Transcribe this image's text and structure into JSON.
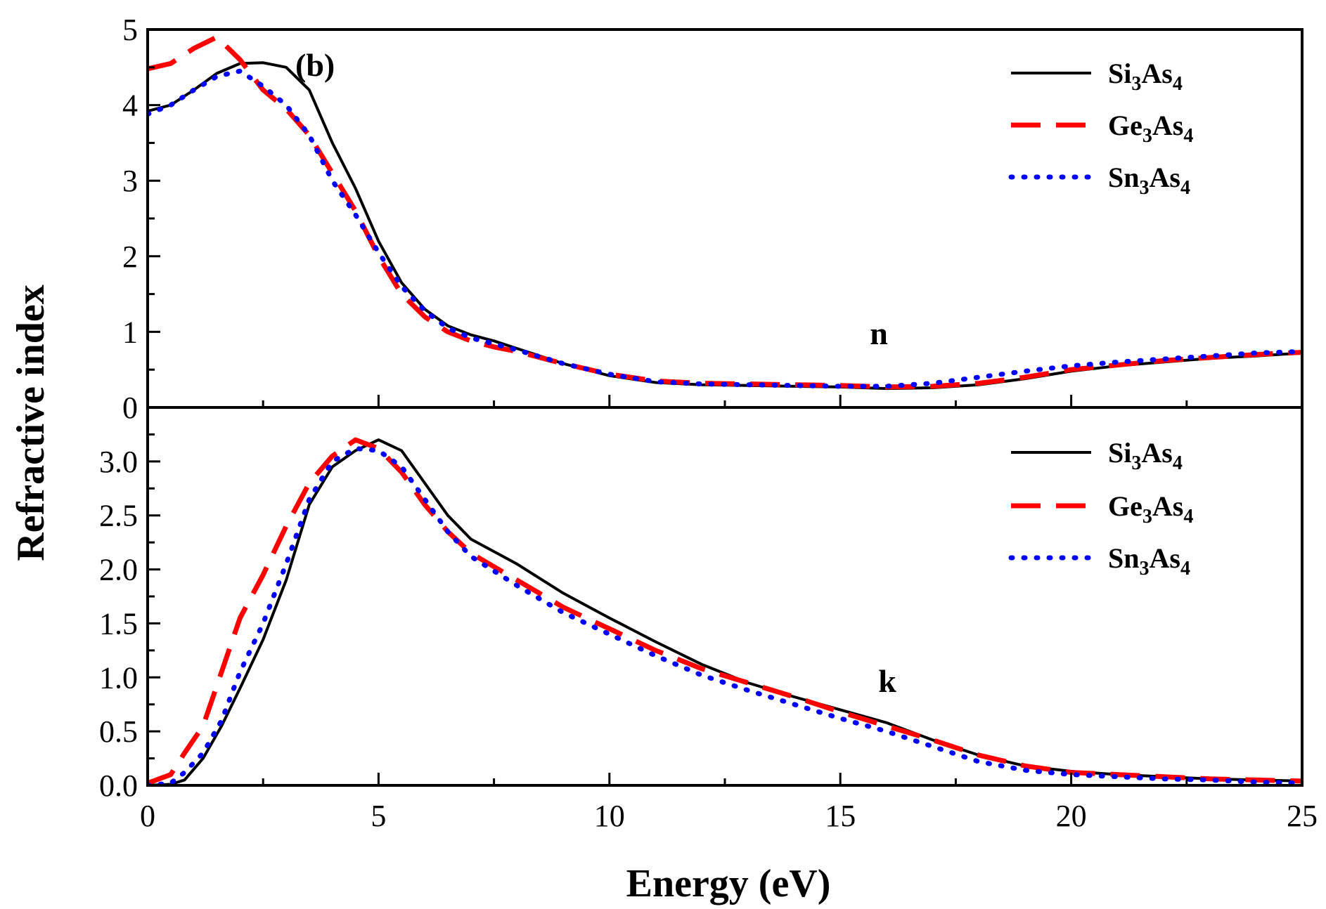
{
  "chart_data": {
    "type": "line",
    "figure_label": "(b)",
    "xlabel": "Energy (eV)",
    "ylabel": "Refractive index",
    "xlim": [
      0,
      25
    ],
    "x_ticks": [
      "0",
      "5",
      "10",
      "15",
      "20",
      "25"
    ],
    "series_styles": [
      {
        "name": "Si3As4",
        "color": "#000000",
        "style": "solid"
      },
      {
        "name": "Ge3As4",
        "color": "#ff0000",
        "style": "dashed"
      },
      {
        "name": "Sn3As4",
        "color": "#0000ff",
        "style": "dotted"
      }
    ],
    "panels": [
      {
        "id": "n",
        "annotation": "n",
        "ylim": [
          0,
          5
        ],
        "y_ticks": [
          "0",
          "1",
          "2",
          "3",
          "4",
          "5"
        ],
        "y_tick_values": [
          0,
          1,
          2,
          3,
          4,
          5
        ],
        "legend": [
          {
            "base1": "Si",
            "sub1": "3",
            "base2": "As",
            "sub2": "4"
          },
          {
            "base1": "Ge",
            "sub1": "3",
            "base2": "As",
            "sub2": "4"
          },
          {
            "base1": "Sn",
            "sub1": "3",
            "base2": "As",
            "sub2": "4"
          }
        ],
        "series": [
          {
            "name": "Si3As4",
            "x": [
              0,
              0.5,
              1,
              1.5,
              2,
              2.5,
              3,
              3.5,
              4,
              4.5,
              5,
              5.5,
              6,
              6.5,
              7,
              7.5,
              8,
              9,
              10,
              11,
              12,
              13,
              14,
              15,
              16,
              17,
              18,
              19,
              20,
              21,
              22,
              23,
              24,
              25
            ],
            "y": [
              3.92,
              4.0,
              4.2,
              4.42,
              4.55,
              4.56,
              4.5,
              4.2,
              3.5,
              2.9,
              2.2,
              1.65,
              1.3,
              1.08,
              0.96,
              0.88,
              0.78,
              0.58,
              0.42,
              0.33,
              0.3,
              0.29,
              0.28,
              0.27,
              0.25,
              0.26,
              0.3,
              0.38,
              0.48,
              0.55,
              0.6,
              0.65,
              0.68,
              0.72
            ]
          },
          {
            "name": "Ge3As4",
            "x": [
              0,
              0.5,
              1,
              1.5,
              2,
              2.5,
              3,
              3.5,
              4,
              4.5,
              5,
              5.5,
              6,
              6.5,
              7,
              7.5,
              8,
              9,
              10,
              11,
              12,
              13,
              14,
              15,
              16,
              17,
              18,
              19,
              20,
              21,
              22,
              23,
              24,
              25
            ],
            "y": [
              4.48,
              4.55,
              4.75,
              4.9,
              4.6,
              4.2,
              3.95,
              3.6,
              3.1,
              2.6,
              2.0,
              1.5,
              1.2,
              1.0,
              0.88,
              0.8,
              0.74,
              0.58,
              0.44,
              0.35,
              0.32,
              0.31,
              0.3,
              0.29,
              0.27,
              0.28,
              0.32,
              0.4,
              0.5,
              0.56,
              0.62,
              0.66,
              0.7,
              0.73
            ]
          },
          {
            "name": "Sn3As4",
            "x": [
              0,
              0.5,
              1,
              1.5,
              2,
              2.5,
              3,
              3.5,
              4,
              4.5,
              5,
              5.5,
              6,
              6.5,
              7,
              7.5,
              8,
              9,
              10,
              11,
              12,
              13,
              14,
              15,
              16,
              17,
              18,
              19,
              20,
              21,
              22,
              23,
              24,
              25
            ],
            "y": [
              3.88,
              4.0,
              4.2,
              4.38,
              4.45,
              4.25,
              4.0,
              3.6,
              3.0,
              2.55,
              2.05,
              1.6,
              1.28,
              1.05,
              0.92,
              0.84,
              0.76,
              0.58,
              0.44,
              0.34,
              0.31,
              0.3,
              0.29,
              0.28,
              0.28,
              0.32,
              0.4,
              0.48,
              0.55,
              0.6,
              0.64,
              0.68,
              0.72,
              0.74
            ]
          }
        ]
      },
      {
        "id": "k",
        "annotation": "k",
        "ylim": [
          0,
          3.5
        ],
        "y_ticks": [
          "0.0",
          "0.5",
          "1.0",
          "1.5",
          "2.0",
          "2.5",
          "3.0"
        ],
        "y_tick_values": [
          0,
          0.5,
          1.0,
          1.5,
          2.0,
          2.5,
          3.0
        ],
        "legend": [
          {
            "base1": "Si",
            "sub1": "3",
            "base2": "As",
            "sub2": "4"
          },
          {
            "base1": "Ge",
            "sub1": "3",
            "base2": "As",
            "sub2": "4"
          },
          {
            "base1": "Sn",
            "sub1": "3",
            "base2": "As",
            "sub2": "4"
          }
        ],
        "series": [
          {
            "name": "Si3As4",
            "x": [
              0,
              0.5,
              0.8,
              1.2,
              1.6,
              2,
              2.5,
              3,
              3.5,
              4,
              4.5,
              5,
              5.5,
              6,
              6.5,
              7,
              8,
              9,
              10,
              11,
              12,
              13,
              14,
              15,
              16,
              17,
              18,
              19,
              20,
              21,
              22,
              23,
              24,
              25
            ],
            "y": [
              0.0,
              0.01,
              0.05,
              0.25,
              0.55,
              0.9,
              1.35,
              1.9,
              2.6,
              2.95,
              3.1,
              3.2,
              3.1,
              2.8,
              2.5,
              2.28,
              2.05,
              1.78,
              1.55,
              1.33,
              1.12,
              0.95,
              0.82,
              0.7,
              0.58,
              0.42,
              0.28,
              0.18,
              0.13,
              0.1,
              0.08,
              0.06,
              0.05,
              0.04
            ]
          },
          {
            "name": "Ge3As4",
            "x": [
              0,
              0.5,
              0.8,
              1.2,
              1.6,
              2,
              2.5,
              3,
              3.5,
              4,
              4.5,
              5,
              5.5,
              6,
              6.5,
              7,
              8,
              9,
              10,
              11,
              12,
              13,
              14,
              15,
              16,
              17,
              18,
              19,
              20,
              21,
              22,
              23,
              24,
              25
            ],
            "y": [
              0.02,
              0.1,
              0.3,
              0.55,
              1.05,
              1.55,
              1.95,
              2.4,
              2.8,
              3.05,
              3.2,
              3.12,
              2.9,
              2.6,
              2.35,
              2.15,
              1.9,
              1.65,
              1.45,
              1.25,
              1.08,
              0.95,
              0.82,
              0.68,
              0.55,
              0.42,
              0.28,
              0.18,
              0.12,
              0.1,
              0.08,
              0.06,
              0.05,
              0.04
            ]
          },
          {
            "name": "Sn3As4",
            "x": [
              0,
              0.5,
              0.8,
              1.2,
              1.6,
              2,
              2.5,
              3,
              3.5,
              4,
              4.5,
              5,
              5.5,
              6,
              6.5,
              7,
              8,
              9,
              10,
              11,
              12,
              13,
              14,
              15,
              16,
              17,
              18,
              19,
              20,
              21,
              22,
              23,
              24,
              25
            ],
            "y": [
              0.0,
              0.02,
              0.12,
              0.3,
              0.6,
              1.05,
              1.5,
              2.05,
              2.65,
              3.0,
              3.12,
              3.1,
              2.95,
              2.65,
              2.35,
              2.12,
              1.85,
              1.6,
              1.4,
              1.2,
              1.02,
              0.88,
              0.75,
              0.62,
              0.5,
              0.36,
              0.22,
              0.14,
              0.1,
              0.08,
              0.06,
              0.05,
              0.03,
              0.02
            ]
          }
        ]
      }
    ]
  }
}
